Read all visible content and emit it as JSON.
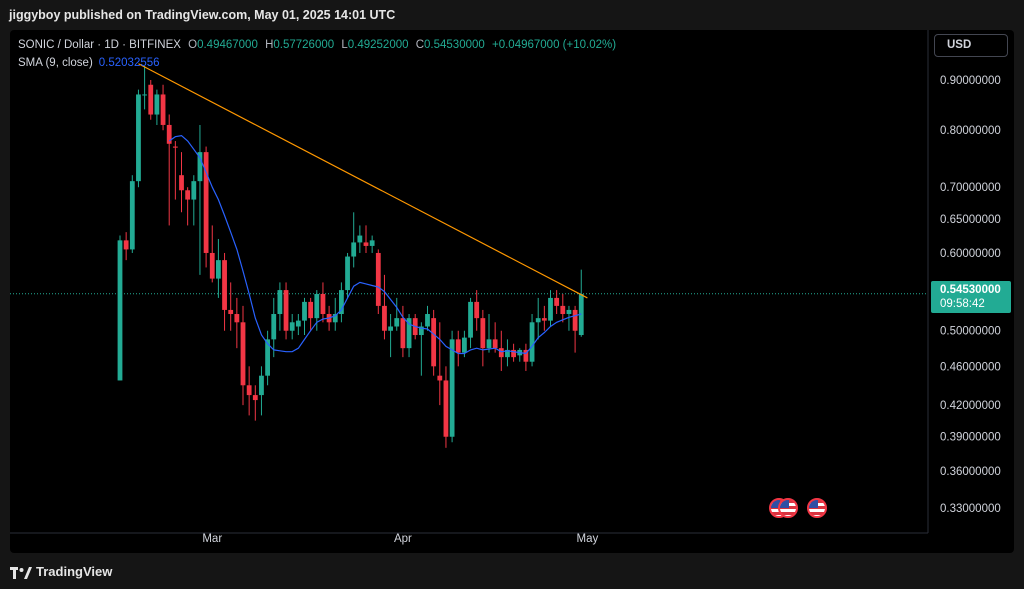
{
  "header": {
    "published_line": "jiggyboy published on TradingView.com, May 01, 2025 14:01 UTC"
  },
  "legend": {
    "symbol": "SONIC / Dollar · 1D · BITFINEX",
    "open_key": "O",
    "open": "0.49467000",
    "high_key": "H",
    "high": "0.57726000",
    "low_key": "L",
    "low": "0.49252000",
    "close_key": "C",
    "close": "0.54530000",
    "change": "+0.04967000 (+10.02%)",
    "sma_label": "SMA (9, close)",
    "sma_value": "0.52032556"
  },
  "currency_button": "USD",
  "price_tag": {
    "price": "0.54530000",
    "timer": "09:58:42"
  },
  "footer": {
    "brand": "TradingView"
  },
  "colors": {
    "up": "#22ab94",
    "down": "#f23645",
    "sma": "#2962ff",
    "trendline": "#ff9800",
    "background": "#000000"
  },
  "icons": [
    "us-flag-icon",
    "us-flag-icon",
    "us-flag-icon",
    "tradingview-logo-icon"
  ],
  "chart_data": {
    "type": "candlestick",
    "scale": "log",
    "ylim": [
      0.31,
      0.96
    ],
    "y_ticks": [
      "0.90000000",
      "0.80000000",
      "0.70000000",
      "0.65000000",
      "0.60000000",
      "0.50000000",
      "0.46000000",
      "0.42000000",
      "0.39000000",
      "0.36000000",
      "0.33000000"
    ],
    "x_ticks": [
      {
        "label": "Mar",
        "date": "2025-03-01"
      },
      {
        "label": "Apr",
        "date": "2025-04-01"
      },
      {
        "label": "May",
        "date": "2025-05-01"
      }
    ],
    "candles": [
      {
        "date": "2025-02-14",
        "o": 0.445,
        "h": 0.625,
        "l": 0.445,
        "c": 0.618
      },
      {
        "date": "2025-02-15",
        "o": 0.618,
        "h": 0.63,
        "l": 0.59,
        "c": 0.605
      },
      {
        "date": "2025-02-16",
        "o": 0.605,
        "h": 0.72,
        "l": 0.6,
        "c": 0.71
      },
      {
        "date": "2025-02-17",
        "o": 0.71,
        "h": 0.88,
        "l": 0.7,
        "c": 0.87
      },
      {
        "date": "2025-02-18",
        "o": 0.87,
        "h": 0.93,
        "l": 0.84,
        "c": 0.87
      },
      {
        "date": "2025-02-19",
        "o": 0.89,
        "h": 0.9,
        "l": 0.82,
        "c": 0.83
      },
      {
        "date": "2025-02-20",
        "o": 0.83,
        "h": 0.88,
        "l": 0.81,
        "c": 0.87
      },
      {
        "date": "2025-02-21",
        "o": 0.87,
        "h": 0.89,
        "l": 0.8,
        "c": 0.81
      },
      {
        "date": "2025-02-22",
        "o": 0.81,
        "h": 0.83,
        "l": 0.64,
        "c": 0.775
      },
      {
        "date": "2025-02-23",
        "o": 0.77,
        "h": 0.78,
        "l": 0.68,
        "c": 0.768
      },
      {
        "date": "2025-02-24",
        "o": 0.72,
        "h": 0.76,
        "l": 0.66,
        "c": 0.695
      },
      {
        "date": "2025-02-25",
        "o": 0.695,
        "h": 0.7,
        "l": 0.64,
        "c": 0.68
      },
      {
        "date": "2025-02-26",
        "o": 0.68,
        "h": 0.72,
        "l": 0.64,
        "c": 0.71
      },
      {
        "date": "2025-02-27",
        "o": 0.71,
        "h": 0.81,
        "l": 0.57,
        "c": 0.76
      },
      {
        "date": "2025-02-28",
        "o": 0.76,
        "h": 0.77,
        "l": 0.58,
        "c": 0.6
      },
      {
        "date": "2025-03-01",
        "o": 0.6,
        "h": 0.64,
        "l": 0.56,
        "c": 0.565
      },
      {
        "date": "2025-03-02",
        "o": 0.565,
        "h": 0.62,
        "l": 0.54,
        "c": 0.59
      },
      {
        "date": "2025-03-03",
        "o": 0.59,
        "h": 0.6,
        "l": 0.5,
        "c": 0.525
      },
      {
        "date": "2025-03-04",
        "o": 0.525,
        "h": 0.56,
        "l": 0.5,
        "c": 0.52
      },
      {
        "date": "2025-03-05",
        "o": 0.52,
        "h": 0.54,
        "l": 0.48,
        "c": 0.51
      },
      {
        "date": "2025-03-06",
        "o": 0.51,
        "h": 0.53,
        "l": 0.42,
        "c": 0.44
      },
      {
        "date": "2025-03-07",
        "o": 0.44,
        "h": 0.46,
        "l": 0.41,
        "c": 0.43
      },
      {
        "date": "2025-03-08",
        "o": 0.43,
        "h": 0.44,
        "l": 0.405,
        "c": 0.425
      },
      {
        "date": "2025-03-09",
        "o": 0.43,
        "h": 0.46,
        "l": 0.41,
        "c": 0.45
      },
      {
        "date": "2025-03-10",
        "o": 0.45,
        "h": 0.5,
        "l": 0.44,
        "c": 0.49
      },
      {
        "date": "2025-03-11",
        "o": 0.49,
        "h": 0.54,
        "l": 0.47,
        "c": 0.52
      },
      {
        "date": "2025-03-12",
        "o": 0.52,
        "h": 0.56,
        "l": 0.5,
        "c": 0.55
      },
      {
        "date": "2025-03-13",
        "o": 0.55,
        "h": 0.56,
        "l": 0.49,
        "c": 0.5
      },
      {
        "date": "2025-03-14",
        "o": 0.5,
        "h": 0.52,
        "l": 0.49,
        "c": 0.51
      },
      {
        "date": "2025-03-15",
        "o": 0.505,
        "h": 0.52,
        "l": 0.495,
        "c": 0.512
      },
      {
        "date": "2025-03-16",
        "o": 0.512,
        "h": 0.54,
        "l": 0.495,
        "c": 0.535
      },
      {
        "date": "2025-03-17",
        "o": 0.535,
        "h": 0.54,
        "l": 0.5,
        "c": 0.515
      },
      {
        "date": "2025-03-18",
        "o": 0.515,
        "h": 0.55,
        "l": 0.5,
        "c": 0.545
      },
      {
        "date": "2025-03-19",
        "o": 0.545,
        "h": 0.56,
        "l": 0.51,
        "c": 0.52
      },
      {
        "date": "2025-03-20",
        "o": 0.52,
        "h": 0.53,
        "l": 0.5,
        "c": 0.51
      },
      {
        "date": "2025-03-21",
        "o": 0.51,
        "h": 0.54,
        "l": 0.5,
        "c": 0.52
      },
      {
        "date": "2025-03-22",
        "o": 0.52,
        "h": 0.56,
        "l": 0.51,
        "c": 0.55
      },
      {
        "date": "2025-03-23",
        "o": 0.55,
        "h": 0.6,
        "l": 0.54,
        "c": 0.595
      },
      {
        "date": "2025-03-24",
        "o": 0.595,
        "h": 0.66,
        "l": 0.58,
        "c": 0.615
      },
      {
        "date": "2025-03-25",
        "o": 0.615,
        "h": 0.64,
        "l": 0.6,
        "c": 0.625
      },
      {
        "date": "2025-03-26",
        "o": 0.615,
        "h": 0.64,
        "l": 0.6,
        "c": 0.61
      },
      {
        "date": "2025-03-27",
        "o": 0.61,
        "h": 0.625,
        "l": 0.6,
        "c": 0.618
      },
      {
        "date": "2025-03-28",
        "o": 0.6,
        "h": 0.605,
        "l": 0.52,
        "c": 0.53
      },
      {
        "date": "2025-03-29",
        "o": 0.53,
        "h": 0.57,
        "l": 0.49,
        "c": 0.5
      },
      {
        "date": "2025-03-30",
        "o": 0.5,
        "h": 0.52,
        "l": 0.47,
        "c": 0.505
      },
      {
        "date": "2025-03-31",
        "o": 0.505,
        "h": 0.54,
        "l": 0.5,
        "c": 0.515
      },
      {
        "date": "2025-04-01",
        "o": 0.515,
        "h": 0.53,
        "l": 0.47,
        "c": 0.48
      },
      {
        "date": "2025-04-02",
        "o": 0.48,
        "h": 0.52,
        "l": 0.47,
        "c": 0.515
      },
      {
        "date": "2025-04-03",
        "o": 0.515,
        "h": 0.52,
        "l": 0.49,
        "c": 0.495
      },
      {
        "date": "2025-04-04",
        "o": 0.495,
        "h": 0.51,
        "l": 0.45,
        "c": 0.505
      },
      {
        "date": "2025-04-05",
        "o": 0.505,
        "h": 0.53,
        "l": 0.5,
        "c": 0.52
      },
      {
        "date": "2025-04-06",
        "o": 0.515,
        "h": 0.525,
        "l": 0.45,
        "c": 0.46
      },
      {
        "date": "2025-04-07",
        "o": 0.45,
        "h": 0.51,
        "l": 0.42,
        "c": 0.445
      },
      {
        "date": "2025-04-08",
        "o": 0.445,
        "h": 0.46,
        "l": 0.38,
        "c": 0.39
      },
      {
        "date": "2025-04-09",
        "o": 0.39,
        "h": 0.5,
        "l": 0.385,
        "c": 0.49
      },
      {
        "date": "2025-04-10",
        "o": 0.49,
        "h": 0.5,
        "l": 0.46,
        "c": 0.475
      },
      {
        "date": "2025-04-11",
        "o": 0.475,
        "h": 0.5,
        "l": 0.47,
        "c": 0.492
      },
      {
        "date": "2025-04-12",
        "o": 0.492,
        "h": 0.54,
        "l": 0.48,
        "c": 0.535
      },
      {
        "date": "2025-04-13",
        "o": 0.535,
        "h": 0.55,
        "l": 0.5,
        "c": 0.515
      },
      {
        "date": "2025-04-14",
        "o": 0.515,
        "h": 0.525,
        "l": 0.46,
        "c": 0.48
      },
      {
        "date": "2025-04-15",
        "o": 0.48,
        "h": 0.52,
        "l": 0.475,
        "c": 0.49
      },
      {
        "date": "2025-04-16",
        "o": 0.49,
        "h": 0.51,
        "l": 0.475,
        "c": 0.48
      },
      {
        "date": "2025-04-17",
        "o": 0.48,
        "h": 0.5,
        "l": 0.455,
        "c": 0.47
      },
      {
        "date": "2025-04-18",
        "o": 0.47,
        "h": 0.49,
        "l": 0.46,
        "c": 0.478
      },
      {
        "date": "2025-04-19",
        "o": 0.478,
        "h": 0.485,
        "l": 0.465,
        "c": 0.47
      },
      {
        "date": "2025-04-20",
        "o": 0.472,
        "h": 0.48,
        "l": 0.465,
        "c": 0.478
      },
      {
        "date": "2025-04-21",
        "o": 0.478,
        "h": 0.485,
        "l": 0.455,
        "c": 0.465
      },
      {
        "date": "2025-04-22",
        "o": 0.465,
        "h": 0.52,
        "l": 0.46,
        "c": 0.51
      },
      {
        "date": "2025-04-23",
        "o": 0.51,
        "h": 0.54,
        "l": 0.49,
        "c": 0.515
      },
      {
        "date": "2025-04-24",
        "o": 0.515,
        "h": 0.53,
        "l": 0.5,
        "c": 0.512
      },
      {
        "date": "2025-04-25",
        "o": 0.512,
        "h": 0.55,
        "l": 0.505,
        "c": 0.54
      },
      {
        "date": "2025-04-26",
        "o": 0.54,
        "h": 0.55,
        "l": 0.52,
        "c": 0.53
      },
      {
        "date": "2025-04-27",
        "o": 0.53,
        "h": 0.545,
        "l": 0.51,
        "c": 0.52
      },
      {
        "date": "2025-04-28",
        "o": 0.52,
        "h": 0.53,
        "l": 0.5,
        "c": 0.525
      },
      {
        "date": "2025-04-29",
        "o": 0.525,
        "h": 0.53,
        "l": 0.475,
        "c": 0.5
      },
      {
        "date": "2025-04-30",
        "o": 0.495,
        "h": 0.577,
        "l": 0.493,
        "c": 0.545
      }
    ],
    "sma": {
      "name": "SMA (9, close)",
      "points": [
        {
          "date": "2025-02-22",
          "v": 0.78
        },
        {
          "date": "2025-02-23",
          "v": 0.788
        },
        {
          "date": "2025-02-24",
          "v": 0.79
        },
        {
          "date": "2025-02-25",
          "v": 0.78
        },
        {
          "date": "2025-02-26",
          "v": 0.765
        },
        {
          "date": "2025-02-27",
          "v": 0.75
        },
        {
          "date": "2025-02-28",
          "v": 0.725
        },
        {
          "date": "2025-03-01",
          "v": 0.7
        },
        {
          "date": "2025-03-02",
          "v": 0.68
        },
        {
          "date": "2025-03-03",
          "v": 0.655
        },
        {
          "date": "2025-03-04",
          "v": 0.63
        },
        {
          "date": "2025-03-05",
          "v": 0.605
        },
        {
          "date": "2025-03-06",
          "v": 0.575
        },
        {
          "date": "2025-03-07",
          "v": 0.545
        },
        {
          "date": "2025-03-08",
          "v": 0.515
        },
        {
          "date": "2025-03-09",
          "v": 0.495
        },
        {
          "date": "2025-03-10",
          "v": 0.485
        },
        {
          "date": "2025-03-11",
          "v": 0.478
        },
        {
          "date": "2025-03-12",
          "v": 0.477
        },
        {
          "date": "2025-03-13",
          "v": 0.476
        },
        {
          "date": "2025-03-14",
          "v": 0.476
        },
        {
          "date": "2025-03-15",
          "v": 0.48
        },
        {
          "date": "2025-03-16",
          "v": 0.49
        },
        {
          "date": "2025-03-17",
          "v": 0.5
        },
        {
          "date": "2025-03-18",
          "v": 0.51
        },
        {
          "date": "2025-03-19",
          "v": 0.514
        },
        {
          "date": "2025-03-20",
          "v": 0.515
        },
        {
          "date": "2025-03-21",
          "v": 0.518
        },
        {
          "date": "2025-03-22",
          "v": 0.525
        },
        {
          "date": "2025-03-23",
          "v": 0.54
        },
        {
          "date": "2025-03-24",
          "v": 0.555
        },
        {
          "date": "2025-03-25",
          "v": 0.56
        },
        {
          "date": "2025-03-26",
          "v": 0.558
        },
        {
          "date": "2025-03-27",
          "v": 0.556
        },
        {
          "date": "2025-03-28",
          "v": 0.554
        },
        {
          "date": "2025-03-29",
          "v": 0.548
        },
        {
          "date": "2025-03-30",
          "v": 0.538
        },
        {
          "date": "2025-03-31",
          "v": 0.528
        },
        {
          "date": "2025-04-01",
          "v": 0.516
        },
        {
          "date": "2025-04-02",
          "v": 0.508
        },
        {
          "date": "2025-04-03",
          "v": 0.505
        },
        {
          "date": "2025-04-04",
          "v": 0.503
        },
        {
          "date": "2025-04-05",
          "v": 0.502
        },
        {
          "date": "2025-04-06",
          "v": 0.496
        },
        {
          "date": "2025-04-07",
          "v": 0.49
        },
        {
          "date": "2025-04-08",
          "v": 0.482
        },
        {
          "date": "2025-04-09",
          "v": 0.478
        },
        {
          "date": "2025-04-10",
          "v": 0.474
        },
        {
          "date": "2025-04-11",
          "v": 0.474
        },
        {
          "date": "2025-04-12",
          "v": 0.478
        },
        {
          "date": "2025-04-13",
          "v": 0.48
        },
        {
          "date": "2025-04-14",
          "v": 0.478
        },
        {
          "date": "2025-04-15",
          "v": 0.479
        },
        {
          "date": "2025-04-16",
          "v": 0.48
        },
        {
          "date": "2025-04-17",
          "v": 0.476
        },
        {
          "date": "2025-04-18",
          "v": 0.477
        },
        {
          "date": "2025-04-19",
          "v": 0.476
        },
        {
          "date": "2025-04-20",
          "v": 0.475
        },
        {
          "date": "2025-04-21",
          "v": 0.474
        },
        {
          "date": "2025-04-22",
          "v": 0.482
        },
        {
          "date": "2025-04-23",
          "v": 0.492
        },
        {
          "date": "2025-04-24",
          "v": 0.498
        },
        {
          "date": "2025-04-25",
          "v": 0.505
        },
        {
          "date": "2025-04-26",
          "v": 0.51
        },
        {
          "date": "2025-04-27",
          "v": 0.513
        },
        {
          "date": "2025-04-28",
          "v": 0.516
        },
        {
          "date": "2025-04-29",
          "v": 0.518
        },
        {
          "date": "2025-04-30",
          "v": 0.52
        }
      ]
    },
    "trendline": {
      "from": {
        "date": "2025-02-17",
        "v": 0.935
      },
      "to": {
        "date": "2025-05-01",
        "v": 0.54
      }
    },
    "last_price_line": 0.5453
  }
}
